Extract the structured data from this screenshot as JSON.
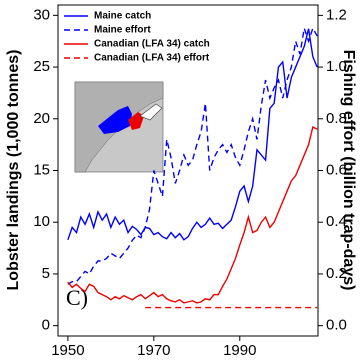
{
  "chart_data": {
    "type": "line",
    "panel_label": "C)",
    "y_label": "Lobster landings (1,000 tonnes)",
    "y2_label": "Fishing effort (billion trap-days)",
    "x": [
      1950,
      1951,
      1952,
      1953,
      1954,
      1955,
      1956,
      1957,
      1958,
      1959,
      1960,
      1961,
      1962,
      1963,
      1964,
      1965,
      1966,
      1967,
      1968,
      1969,
      1970,
      1971,
      1972,
      1973,
      1974,
      1975,
      1976,
      1977,
      1978,
      1979,
      1980,
      1981,
      1982,
      1983,
      1984,
      1985,
      1986,
      1987,
      1988,
      1989,
      1990,
      1991,
      1992,
      1993,
      1994,
      1995,
      1996,
      1997,
      1998,
      1999,
      2000,
      2001,
      2002,
      2003,
      2004,
      2005,
      2006,
      2007,
      2008
    ],
    "series": [
      {
        "name": "Maine catch",
        "color": "#0000ff",
        "style": "solid",
        "axis": "y",
        "values": [
          8.3,
          9.5,
          9.0,
          10.5,
          9.8,
          10.8,
          9.5,
          11.0,
          10.2,
          10.8,
          9.5,
          10.5,
          9.8,
          10.2,
          9.0,
          9.6,
          9.3,
          8.8,
          9.5,
          9.4,
          8.8,
          9.0,
          8.6,
          8.4,
          9.0,
          8.5,
          8.9,
          8.3,
          8.6,
          9.4,
          10.0,
          9.5,
          9.8,
          10.4,
          9.8,
          9.9,
          9.4,
          9.8,
          10.2,
          11.5,
          13.0,
          13.5,
          12.0,
          13.5,
          17.0,
          16.5,
          16.0,
          21.0,
          21.5,
          25.0,
          25.5,
          22.0,
          24.0,
          25.0,
          26.0,
          27.0,
          28.7,
          26.0,
          25.0
        ]
      },
      {
        "name": "Maine effort",
        "color": "#0000ff",
        "style": "dashed",
        "axis": "y2",
        "values": [
          0.16,
          0.17,
          0.17,
          0.19,
          0.21,
          0.2,
          0.23,
          0.25,
          0.25,
          0.26,
          0.28,
          0.27,
          0.26,
          0.28,
          0.3,
          0.33,
          0.35,
          0.34,
          0.38,
          0.45,
          0.6,
          0.55,
          0.5,
          0.72,
          0.65,
          0.55,
          0.6,
          0.66,
          0.62,
          0.64,
          0.7,
          0.75,
          0.86,
          0.6,
          0.65,
          0.68,
          0.7,
          0.67,
          0.7,
          0.65,
          0.62,
          0.68,
          0.75,
          0.8,
          0.72,
          0.85,
          0.95,
          0.88,
          0.92,
          0.95,
          0.88,
          0.95,
          1.0,
          1.1,
          1.05,
          1.15,
          1.1,
          1.15,
          1.12
        ]
      },
      {
        "name": "Canadian (LFA 34) catch",
        "color": "#ee0000",
        "style": "solid",
        "axis": "y",
        "values": [
          4.2,
          3.7,
          4.0,
          3.6,
          3.3,
          4.0,
          3.8,
          3.2,
          3.0,
          2.8,
          2.5,
          2.8,
          2.6,
          2.9,
          2.7,
          2.5,
          2.8,
          3.0,
          2.6,
          2.9,
          3.2,
          2.8,
          3.0,
          2.6,
          2.4,
          2.3,
          2.5,
          2.2,
          2.3,
          2.4,
          2.2,
          2.3,
          2.6,
          2.5,
          3.0,
          3.0,
          3.8,
          4.5,
          5.5,
          6.5,
          7.8,
          9.0,
          10.5,
          9.0,
          9.2,
          10.0,
          10.5,
          9.5,
          10.0,
          11.0,
          12.0,
          13.0,
          14.0,
          14.5,
          15.5,
          16.5,
          17.5,
          19.2,
          19.0
        ]
      },
      {
        "name": "Canadian (LFA 34) effort",
        "color": "#ee0000",
        "style": "dashed",
        "axis": "y2",
        "values": [
          null,
          null,
          null,
          null,
          null,
          null,
          null,
          null,
          null,
          null,
          null,
          null,
          null,
          null,
          null,
          null,
          null,
          null,
          0.07,
          0.07,
          0.07,
          0.07,
          0.07,
          0.07,
          0.07,
          0.07,
          0.07,
          0.07,
          0.07,
          0.07,
          0.07,
          0.07,
          0.07,
          0.07,
          0.07,
          0.07,
          0.07,
          0.07,
          0.07,
          0.07,
          0.07,
          0.07,
          0.07,
          0.07,
          0.07,
          0.07,
          0.07,
          0.07,
          0.07,
          0.07,
          0.07,
          0.07,
          0.07,
          0.07,
          0.07,
          0.07,
          0.07,
          0.07,
          0.07
        ]
      }
    ],
    "xlim": [
      1947.7,
      2008.2
    ],
    "xticks": [
      1950,
      1970,
      1990
    ],
    "ylim": [
      -1,
      31
    ],
    "yticks": [
      0,
      5,
      10,
      15,
      20,
      25,
      30
    ],
    "y2lim": [
      -0.04,
      1.24
    ],
    "y2ticks": [
      {
        "value": 0,
        "label": "0.0"
      },
      0.2,
      0.4,
      0.6,
      0.8,
      {
        "value": 1,
        "label": "1.0"
      },
      1.2
    ],
    "legend": "upper left"
  }
}
